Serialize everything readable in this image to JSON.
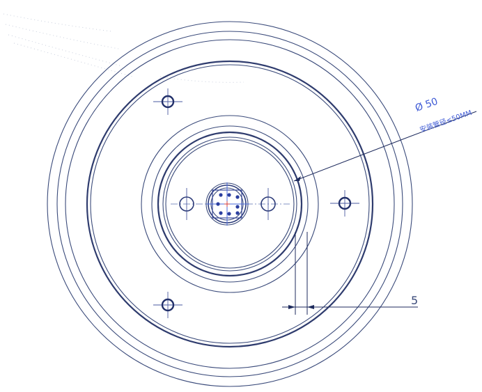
{
  "annotations": {
    "diameter_label": "Ø 50",
    "diameter_note": "安装管径≤50MM",
    "offset_label": "5"
  }
}
